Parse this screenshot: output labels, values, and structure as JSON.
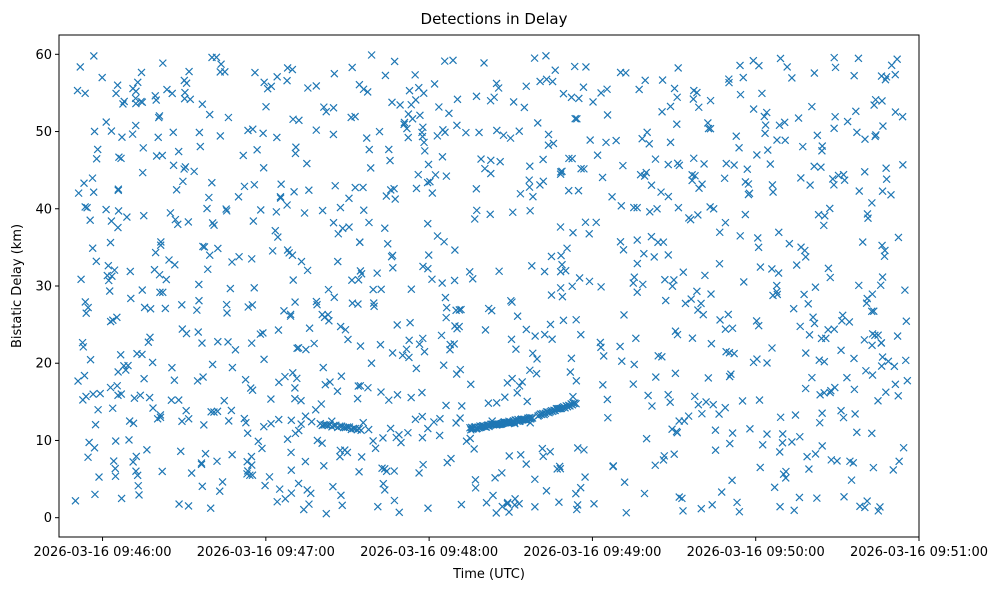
{
  "chart_data": {
    "type": "scatter",
    "title": "Detections in Delay",
    "xlabel": "Time (UTC)",
    "ylabel": "Bistatic Delay (km)",
    "xlim": [
      "2026-03-16 09:45:44",
      "2026-03-16 09:51:00"
    ],
    "ylim": [
      -2.5,
      62.5
    ],
    "x_ticks": [
      "2026-03-16 09:46:00",
      "2026-03-16 09:47:00",
      "2026-03-16 09:48:00",
      "2026-03-16 09:49:00",
      "2026-03-16 09:50:00",
      "2026-03-16 09:51:00"
    ],
    "y_ticks": [
      0,
      10,
      20,
      30,
      40,
      50,
      60
    ],
    "grid": false,
    "marker": "x",
    "color": "#1f77b4",
    "x_time_range": [
      "2026-03-16 09:45:50",
      "2026-03-16 09:50:56"
    ],
    "noise_detections": {
      "description_count": 1100,
      "delay_range_km": [
        0.5,
        60
      ]
    },
    "series": [
      {
        "name": "",
        "segments": [
          {
            "x_start": "2026-03-16 09:47:20",
            "x_end": "2026-03-16 09:47:35",
            "y_start": 12.1,
            "y_end": 11.4,
            "count": 22
          },
          {
            "x_start": "2026-03-16 09:48:15",
            "x_end": "2026-03-16 09:48:38",
            "y_start": 11.5,
            "y_end": 12.9,
            "count": 70
          },
          {
            "x_start": "2026-03-16 09:48:40",
            "x_end": "2026-03-16 09:48:54",
            "y_start": 13.2,
            "y_end": 14.8,
            "count": 32
          }
        ]
      }
    ]
  }
}
